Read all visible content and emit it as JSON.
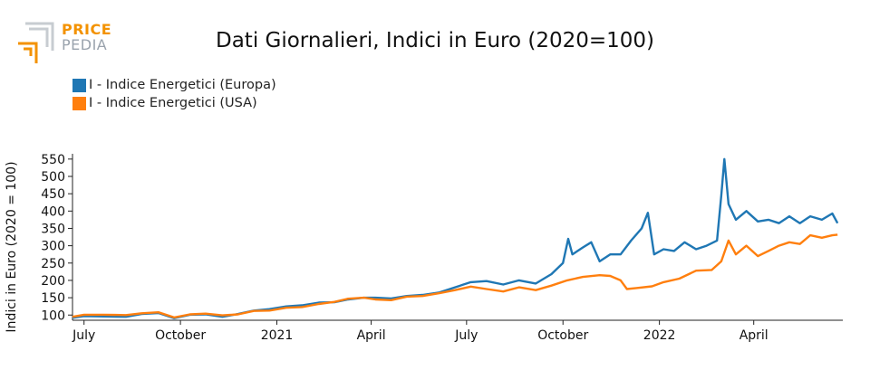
{
  "logo": {
    "line1": "PRICE",
    "line2": "PEDIA",
    "colors": {
      "orange": "#f39200",
      "gray": "#9aa3ad"
    }
  },
  "chart_data": {
    "type": "line",
    "title": "Dati Giornalieri, Indici in Euro (2020=100)",
    "xlabel": "",
    "ylabel": "Indici in Euro (2020 = 100)",
    "ylim": [
      85,
      560
    ],
    "yticks": [
      100,
      150,
      200,
      250,
      300,
      350,
      400,
      450,
      500,
      550
    ],
    "xlim": [
      "2020-06-20",
      "2022-06-25"
    ],
    "xticks": [
      {
        "date": "2020-07-01",
        "label": "July"
      },
      {
        "date": "2020-10-01",
        "label": "October"
      },
      {
        "date": "2021-01-01",
        "label": "2021"
      },
      {
        "date": "2021-04-01",
        "label": "April"
      },
      {
        "date": "2021-07-01",
        "label": "July"
      },
      {
        "date": "2021-10-01",
        "label": "October"
      },
      {
        "date": "2022-01-01",
        "label": "2022"
      },
      {
        "date": "2022-04-01",
        "label": "April"
      }
    ],
    "legend_position": "top-left",
    "grid": false,
    "series": [
      {
        "name": "I - Indice Energetici (Europa)",
        "color": "#1f77b4",
        "points": [
          [
            "2020-06-20",
            92
          ],
          [
            "2020-07-01",
            97
          ],
          [
            "2020-07-20",
            96
          ],
          [
            "2020-08-10",
            95
          ],
          [
            "2020-08-25",
            103
          ],
          [
            "2020-09-10",
            106
          ],
          [
            "2020-09-25",
            91
          ],
          [
            "2020-10-10",
            101
          ],
          [
            "2020-10-25",
            102
          ],
          [
            "2020-11-10",
            95
          ],
          [
            "2020-11-25",
            103
          ],
          [
            "2020-12-10",
            113
          ],
          [
            "2020-12-25",
            117
          ],
          [
            "2021-01-10",
            125
          ],
          [
            "2021-01-25",
            128
          ],
          [
            "2021-02-10",
            136
          ],
          [
            "2021-02-25",
            137
          ],
          [
            "2021-03-10",
            145
          ],
          [
            "2021-03-25",
            150
          ],
          [
            "2021-04-05",
            150
          ],
          [
            "2021-04-20",
            148
          ],
          [
            "2021-05-05",
            155
          ],
          [
            "2021-05-20",
            158
          ],
          [
            "2021-06-05",
            165
          ],
          [
            "2021-06-20",
            180
          ],
          [
            "2021-07-05",
            195
          ],
          [
            "2021-07-20",
            198
          ],
          [
            "2021-08-05",
            188
          ],
          [
            "2021-08-20",
            200
          ],
          [
            "2021-09-05",
            191
          ],
          [
            "2021-09-20",
            218
          ],
          [
            "2021-10-01",
            250
          ],
          [
            "2021-10-06",
            320
          ],
          [
            "2021-10-10",
            275
          ],
          [
            "2021-10-20",
            295
          ],
          [
            "2021-10-28",
            310
          ],
          [
            "2021-11-05",
            255
          ],
          [
            "2021-11-15",
            275
          ],
          [
            "2021-11-25",
            275
          ],
          [
            "2021-12-05",
            315
          ],
          [
            "2021-12-15",
            350
          ],
          [
            "2021-12-21",
            395
          ],
          [
            "2021-12-27",
            275
          ],
          [
            "2022-01-05",
            290
          ],
          [
            "2022-01-15",
            285
          ],
          [
            "2022-01-25",
            310
          ],
          [
            "2022-02-05",
            290
          ],
          [
            "2022-02-15",
            300
          ],
          [
            "2022-02-25",
            315
          ],
          [
            "2022-03-01",
            445
          ],
          [
            "2022-03-04",
            550
          ],
          [
            "2022-03-08",
            420
          ],
          [
            "2022-03-15",
            375
          ],
          [
            "2022-03-25",
            400
          ],
          [
            "2022-04-05",
            370
          ],
          [
            "2022-04-15",
            375
          ],
          [
            "2022-04-25",
            365
          ],
          [
            "2022-05-05",
            385
          ],
          [
            "2022-05-15",
            365
          ],
          [
            "2022-05-25",
            385
          ],
          [
            "2022-06-05",
            375
          ],
          [
            "2022-06-15",
            393
          ],
          [
            "2022-06-20",
            365
          ]
        ]
      },
      {
        "name": "I - Indice Energetici (USA)",
        "color": "#ff7f0e",
        "points": [
          [
            "2020-06-20",
            95
          ],
          [
            "2020-07-01",
            101
          ],
          [
            "2020-07-20",
            101
          ],
          [
            "2020-08-10",
            100
          ],
          [
            "2020-08-25",
            105
          ],
          [
            "2020-09-10",
            108
          ],
          [
            "2020-09-25",
            93
          ],
          [
            "2020-10-10",
            102
          ],
          [
            "2020-10-25",
            104
          ],
          [
            "2020-11-10",
            99
          ],
          [
            "2020-11-25",
            102
          ],
          [
            "2020-12-10",
            112
          ],
          [
            "2020-12-25",
            113
          ],
          [
            "2021-01-10",
            121
          ],
          [
            "2021-01-25",
            123
          ],
          [
            "2021-02-10",
            132
          ],
          [
            "2021-02-25",
            138
          ],
          [
            "2021-03-10",
            147
          ],
          [
            "2021-03-25",
            150
          ],
          [
            "2021-04-05",
            145
          ],
          [
            "2021-04-20",
            143
          ],
          [
            "2021-05-05",
            153
          ],
          [
            "2021-05-20",
            155
          ],
          [
            "2021-06-05",
            163
          ],
          [
            "2021-06-20",
            172
          ],
          [
            "2021-07-05",
            182
          ],
          [
            "2021-07-20",
            175
          ],
          [
            "2021-08-05",
            168
          ],
          [
            "2021-08-20",
            180
          ],
          [
            "2021-09-05",
            172
          ],
          [
            "2021-09-20",
            185
          ],
          [
            "2021-10-05",
            200
          ],
          [
            "2021-10-20",
            210
          ],
          [
            "2021-11-05",
            215
          ],
          [
            "2021-11-15",
            213
          ],
          [
            "2021-11-25",
            200
          ],
          [
            "2021-12-01",
            175
          ],
          [
            "2021-12-10",
            178
          ],
          [
            "2021-12-25",
            183
          ],
          [
            "2022-01-05",
            195
          ],
          [
            "2022-01-20",
            205
          ],
          [
            "2022-02-05",
            228
          ],
          [
            "2022-02-20",
            230
          ],
          [
            "2022-03-01",
            255
          ],
          [
            "2022-03-08",
            315
          ],
          [
            "2022-03-15",
            275
          ],
          [
            "2022-03-25",
            300
          ],
          [
            "2022-04-05",
            270
          ],
          [
            "2022-04-15",
            285
          ],
          [
            "2022-04-25",
            300
          ],
          [
            "2022-05-05",
            310
          ],
          [
            "2022-05-15",
            305
          ],
          [
            "2022-05-25",
            330
          ],
          [
            "2022-06-05",
            323
          ],
          [
            "2022-06-15",
            330
          ],
          [
            "2022-06-20",
            332
          ]
        ]
      }
    ]
  }
}
